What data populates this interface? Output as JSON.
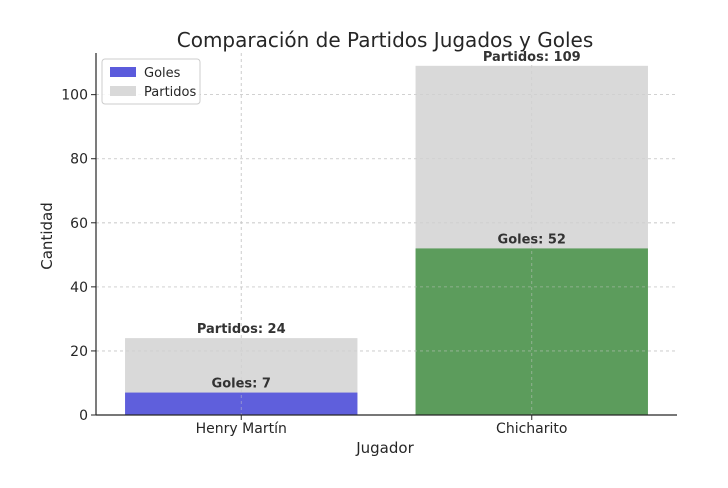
{
  "chart_data": {
    "type": "bar",
    "title": "Comparación de Partidos Jugados y Goles",
    "xlabel": "Jugador",
    "ylabel": "Cantidad",
    "categories": [
      "Henry Martín",
      "Chicharito"
    ],
    "ylim": [
      0,
      113
    ],
    "yticks": [
      0,
      20,
      40,
      60,
      80,
      100
    ],
    "grid": true,
    "legend_position": "top-left",
    "series": [
      {
        "name": "Partidos",
        "values": [
          24,
          109
        ],
        "colors": [
          "#d9d9d9",
          "#d9d9d9"
        ],
        "labels": [
          "Partidos: 24",
          "Partidos: 109"
        ]
      },
      {
        "name": "Goles",
        "values": [
          7,
          52
        ],
        "colors": [
          "#5b5bdc",
          "#589a58"
        ],
        "labels": [
          "Goles: 7",
          "Goles: 52"
        ]
      }
    ],
    "legend": [
      {
        "label": "Goles",
        "color": "#5b5bdc"
      },
      {
        "label": "Partidos",
        "color": "#d9d9d9"
      }
    ]
  }
}
